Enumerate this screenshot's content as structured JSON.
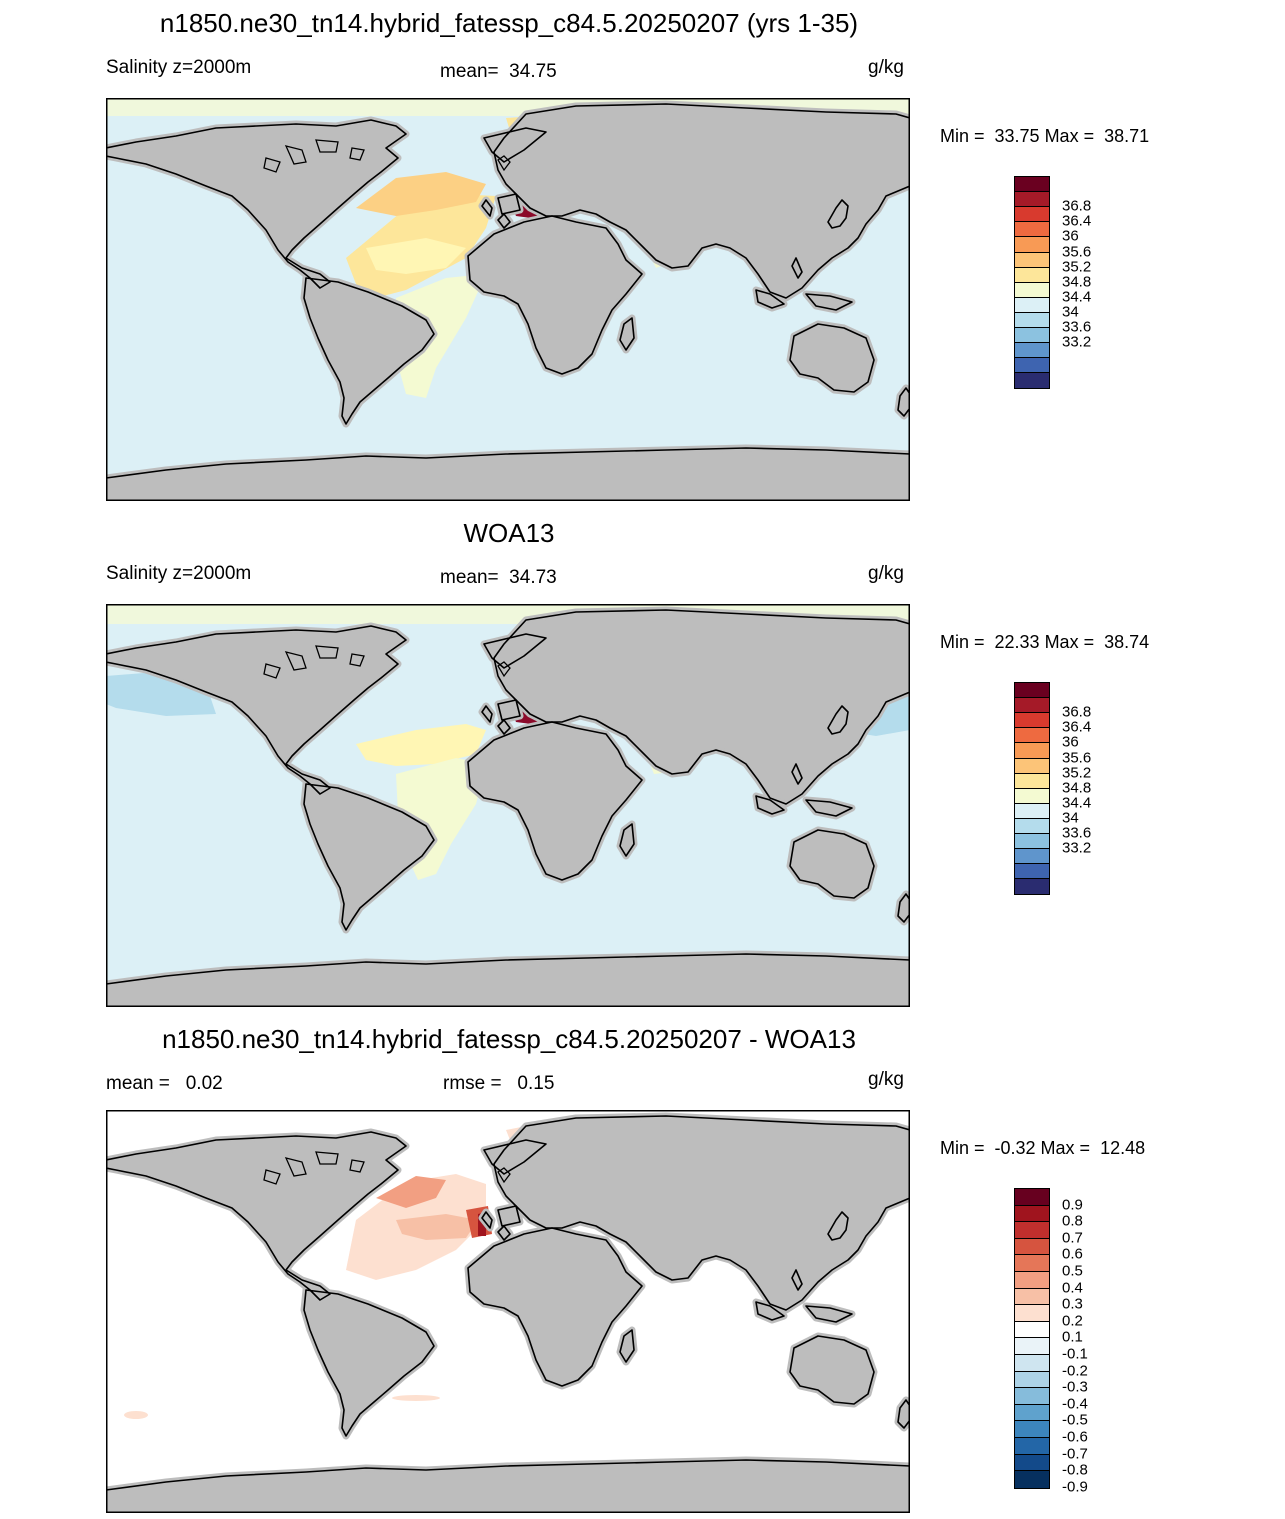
{
  "panels": [
    {
      "title": "n1850.ne30_tn14.hybrid_fatessp_c84.5.20250207 (yrs 1-35)",
      "left_label": "Salinity z=2000m",
      "center_label": "mean=  34.75",
      "units": "g/kg",
      "minmax": "Min =  33.75 Max =  38.71",
      "map_kind": "model",
      "colorbar": {
        "colors": [
          "#6a0020",
          "#a51a28",
          "#d83a2e",
          "#ee6a40",
          "#f89a55",
          "#fcc478",
          "#fde69a",
          "#f4fad2",
          "#dcf0f6",
          "#b4dcec",
          "#8cc2e0",
          "#5f95cc",
          "#3e64b0",
          "#2a2c70"
        ],
        "labels": [
          "36.8",
          "36.4",
          "36",
          "35.6",
          "35.2",
          "34.8",
          "34.4",
          "34",
          "33.6",
          "33.2"
        ]
      }
    },
    {
      "title": "WOA13",
      "left_label": "Salinity z=2000m",
      "center_label": "mean=  34.73",
      "units": "g/kg",
      "minmax": "Min =  22.33 Max =  38.74",
      "map_kind": "obs",
      "colorbar": {
        "colors": [
          "#6a0020",
          "#a51a28",
          "#d83a2e",
          "#ee6a40",
          "#f89a55",
          "#fcc478",
          "#fde69a",
          "#f4fad2",
          "#dcf0f6",
          "#b4dcec",
          "#8cc2e0",
          "#5f95cc",
          "#3e64b0",
          "#2a2c70"
        ],
        "labels": [
          "36.8",
          "36.4",
          "36",
          "35.6",
          "35.2",
          "34.8",
          "34.4",
          "34",
          "33.6",
          "33.2"
        ]
      }
    },
    {
      "title": "n1850.ne30_tn14.hybrid_fatessp_c84.5.20250207 - WOA13",
      "left_label": "mean =   0.02",
      "center_label": "rmse =   0.15",
      "units": "g/kg",
      "minmax": "Min =  -0.32 Max =  12.48",
      "map_kind": "diff",
      "colorbar": {
        "colors": [
          "#67001f",
          "#a0141e",
          "#c02f2d",
          "#d6543f",
          "#e57658",
          "#f29f82",
          "#f7c0a6",
          "#fde0d0",
          "#ffffff",
          "#eaf3f8",
          "#cfe5f0",
          "#add3e7",
          "#86bcdb",
          "#5fa2cd",
          "#3c85bd",
          "#2366a7",
          "#134a8a",
          "#06305f"
        ],
        "labels": [
          "0.9",
          "0.8",
          "0.7",
          "0.6",
          "0.5",
          "0.4",
          "0.3",
          "0.2",
          "0.1",
          "-0.1",
          "-0.2",
          "-0.3",
          "-0.4",
          "-0.5",
          "-0.6",
          "-0.7",
          "-0.8",
          "-0.9"
        ]
      }
    }
  ]
}
